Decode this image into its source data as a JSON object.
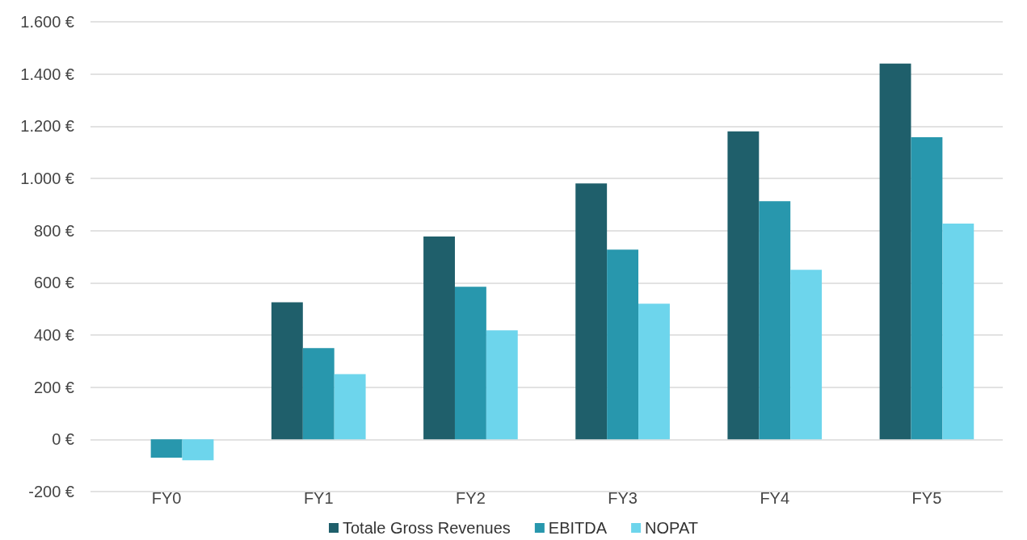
{
  "chart_data": {
    "type": "bar",
    "categories": [
      "FY0",
      "FY1",
      "FY2",
      "FY3",
      "FY4",
      "FY5"
    ],
    "series": [
      {
        "name": "Totale Gross Revenues",
        "color": "#1f5f6b",
        "values": [
          null,
          525,
          777,
          981,
          1180,
          1440
        ]
      },
      {
        "name": "EBITDA",
        "color": "#2897ad",
        "values": [
          -70,
          350,
          585,
          727,
          913,
          1158
        ]
      },
      {
        "name": "NOPAT",
        "color": "#6dd5ec",
        "values": [
          -80,
          250,
          418,
          520,
          650,
          827
        ]
      }
    ],
    "ylim": [
      -200,
      1600
    ],
    "yticks": [
      {
        "value": -200,
        "label": "-200 €"
      },
      {
        "value": 0,
        "label": "0 €"
      },
      {
        "value": 200,
        "label": "200 €"
      },
      {
        "value": 400,
        "label": "400 €"
      },
      {
        "value": 600,
        "label": "600 €"
      },
      {
        "value": 800,
        "label": "800 €"
      },
      {
        "value": 1000,
        "label": "1.000 €"
      },
      {
        "value": 1200,
        "label": "1.200 €"
      },
      {
        "value": 1400,
        "label": "1.400 €"
      },
      {
        "value": 1600,
        "label": "1.600 €"
      }
    ],
    "grid": "y",
    "legend": "bottom"
  }
}
